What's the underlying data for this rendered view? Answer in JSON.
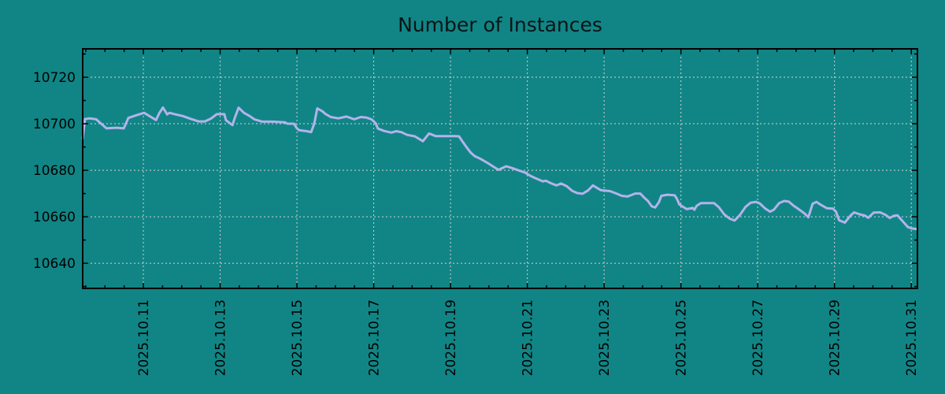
{
  "colors": {
    "background": "#118585",
    "line": "#b3b3eb",
    "grid": "#d2d2d2",
    "axis": "#000000",
    "title_text": "#0b1416"
  },
  "chart_data": {
    "type": "line",
    "title": "Number of Instances",
    "xlabel": "",
    "ylabel": "",
    "grid": true,
    "legend": false,
    "x_axis": {
      "lim": [
        9.42,
        31.16
      ],
      "unit": "date (2025.10.DD)",
      "major_ticks": [
        11,
        13,
        15,
        17,
        19,
        21,
        23,
        25,
        27,
        29,
        31
      ],
      "major_labels": [
        "2025.10.11",
        "2025.10.13",
        "2025.10.15",
        "2025.10.17",
        "2025.10.19",
        "2025.10.21",
        "2025.10.23",
        "2025.10.25",
        "2025.10.27",
        "2025.10.29",
        "2025.10.31"
      ],
      "minor_step": 0.5,
      "label_rotation": 90
    },
    "y_axis": {
      "lim": [
        10629.2,
        10732.2
      ],
      "major_ticks": [
        10640,
        10660,
        10680,
        10700,
        10720
      ],
      "major_labels": [
        "10640",
        "10660",
        "10680",
        "10700",
        "10720"
      ],
      "minor_step": 10
    },
    "series": [
      {
        "name": "instances",
        "x": [
          9.42,
          9.48,
          9.6,
          9.77,
          9.87,
          10.04,
          10.3,
          10.49,
          10.61,
          10.79,
          10.96,
          11.02,
          11.16,
          11.33,
          11.41,
          11.51,
          11.62,
          11.68,
          11.82,
          12.03,
          12.23,
          12.44,
          12.6,
          12.76,
          12.91,
          13.11,
          13.15,
          13.28,
          13.32,
          13.38,
          13.48,
          13.62,
          13.77,
          13.89,
          14.1,
          14.38,
          14.69,
          14.75,
          14.92,
          15.0,
          15.06,
          15.26,
          15.37,
          15.45,
          15.53,
          15.67,
          15.74,
          15.88,
          16.08,
          16.29,
          16.49,
          16.66,
          16.8,
          16.94,
          17.05,
          17.11,
          17.27,
          17.46,
          17.58,
          17.72,
          17.87,
          18.07,
          18.28,
          18.44,
          18.61,
          19.1,
          19.22,
          19.32,
          19.43,
          19.53,
          19.63,
          19.77,
          19.98,
          20.12,
          20.25,
          20.45,
          20.59,
          20.8,
          20.94,
          21.07,
          21.21,
          21.41,
          21.48,
          21.62,
          21.76,
          21.88,
          22.03,
          22.17,
          22.3,
          22.44,
          22.58,
          22.71,
          22.91,
          23.16,
          23.32,
          23.46,
          23.61,
          23.81,
          23.94,
          24.04,
          24.14,
          24.24,
          24.33,
          24.43,
          24.49,
          24.65,
          24.84,
          24.9,
          24.96,
          25.15,
          25.31,
          25.35,
          25.41,
          25.52,
          25.86,
          25.99,
          26.13,
          26.27,
          26.4,
          26.54,
          26.68,
          26.81,
          26.95,
          27.05,
          27.2,
          27.32,
          27.42,
          27.56,
          27.69,
          27.81,
          27.93,
          28.08,
          28.22,
          28.32,
          28.43,
          28.53,
          28.63,
          28.8,
          28.96,
          29.04,
          29.12,
          29.27,
          29.41,
          29.51,
          29.66,
          29.78,
          29.88,
          30.02,
          30.19,
          30.33,
          30.44,
          30.54,
          30.64,
          30.78,
          30.91,
          31.01,
          31.15
        ],
        "y": [
          10693.6,
          10702,
          10702.3,
          10701.9,
          10700.5,
          10698,
          10698.3,
          10698,
          10702.5,
          10703.5,
          10704.4,
          10704.7,
          10703.3,
          10701.6,
          10704.4,
          10707,
          10704,
          10704.7,
          10704.1,
          10703.3,
          10702.1,
          10701,
          10701,
          10702.2,
          10704.1,
          10704.1,
          10701.5,
          10699.9,
          10699.4,
          10702.5,
          10706.9,
          10704.7,
          10703.3,
          10701.9,
          10700.9,
          10700.9,
          10700.6,
          10700,
          10700,
          10698,
          10697.2,
          10696.8,
          10696.4,
          10700,
          10706.6,
          10705.3,
          10704.2,
          10702.9,
          10702.3,
          10703.1,
          10701.9,
          10702.9,
          10702.7,
          10701.9,
          10700.2,
          10697.9,
          10696.9,
          10696.2,
          10696.8,
          10696.4,
          10695.2,
          10694.6,
          10692.5,
          10695.8,
          10694.7,
          10694.7,
          10694.6,
          10692.2,
          10689.6,
          10687.5,
          10686.1,
          10685,
          10683,
          10681.5,
          10680.2,
          10681.7,
          10681,
          10679.8,
          10679,
          10677.7,
          10676.6,
          10675.2,
          10675.5,
          10674.4,
          10673.5,
          10674.3,
          10673.1,
          10671.1,
          10670.2,
          10669.9,
          10671.3,
          10673.5,
          10671.5,
          10671,
          10670,
          10669,
          10668.7,
          10670,
          10670,
          10668.3,
          10666.8,
          10664.5,
          10664,
          10666.4,
          10669,
          10669.5,
          10669.2,
          10667.6,
          10665.3,
          10663.3,
          10663.8,
          10663,
          10664.7,
          10665.9,
          10665.9,
          10664.1,
          10661,
          10659.2,
          10658.4,
          10660.8,
          10664.2,
          10666,
          10666.4,
          10665.8,
          10663.5,
          10662.2,
          10663,
          10665.9,
          10666.8,
          10666.5,
          10664.8,
          10663.1,
          10661.4,
          10659.8,
          10665.6,
          10666.4,
          10665.3,
          10663.7,
          10663.5,
          10662.2,
          10658.5,
          10657.5,
          10660.4,
          10661.9,
          10661,
          10660.6,
          10659.6,
          10661.8,
          10661.9,
          10660.8,
          10659.5,
          10660.4,
          10660.6,
          10658,
          10655.6,
          10655,
          10654.7
        ]
      }
    ]
  }
}
